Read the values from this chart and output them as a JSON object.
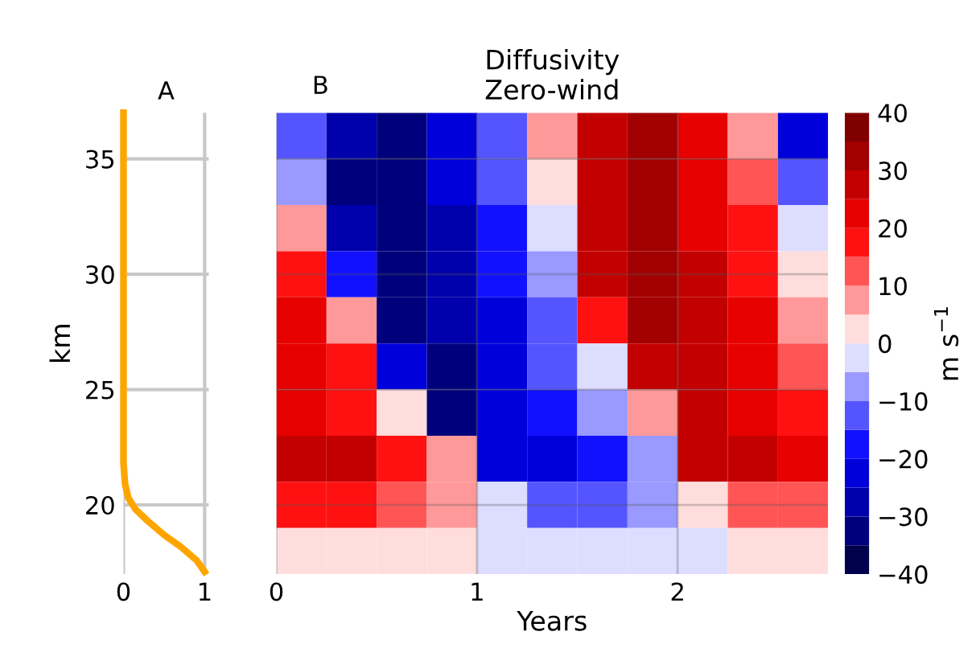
{
  "chart_data": [
    {
      "type": "line",
      "title": "A",
      "ylabel": "km",
      "x": [
        1,
        0.9,
        0.7,
        0.5,
        0.3,
        0.15,
        0.06,
        0.02,
        0,
        0
      ],
      "series": [
        {
          "color": "#ffa500",
          "values": [
            17.1,
            17.6,
            18.2,
            18.7,
            19.3,
            19.8,
            20.3,
            20.9,
            21.8,
            37
          ]
        }
      ],
      "xlim": [
        0,
        1.05
      ],
      "xticks": [
        0,
        1
      ],
      "ylim": [
        17,
        37
      ],
      "yticks": [
        20,
        25,
        30,
        35
      ],
      "grid": true
    },
    {
      "type": "heatmap",
      "title": "Diffusivity\nZero-wind",
      "annotations": [
        "B"
      ],
      "xlabel": "Years",
      "clabel": "m s$^{−1}$",
      "x": [
        0.125,
        0.375,
        0.625,
        0.875,
        1.125,
        1.375,
        1.625,
        1.875,
        2.125,
        2.375,
        2.625
      ],
      "y_categories": [
        null,
        null,
        null,
        null,
        null,
        null,
        null,
        null,
        null,
        null
      ],
      "cells": [
        [
          -15,
          -30,
          -32,
          -25,
          -12,
          5,
          28,
          30,
          22,
          8,
          -22
        ],
        [
          -10,
          -32,
          -33,
          -25,
          -15,
          3,
          28,
          30,
          23,
          12,
          -15
        ],
        [
          5,
          -30,
          -33,
          -27,
          -18,
          -4,
          27,
          30,
          24,
          15,
          -5
        ],
        [
          15,
          -20,
          -33,
          -28,
          -20,
          -7,
          25,
          30,
          25,
          17,
          2
        ],
        [
          20,
          5,
          -33,
          -30,
          -22,
          -12,
          15,
          30,
          26,
          20,
          8
        ],
        [
          22,
          15,
          -25,
          -32,
          -23,
          -15,
          -5,
          28,
          27,
          22,
          12
        ],
        [
          22,
          18,
          3,
          -32,
          -25,
          -18,
          -10,
          5,
          28,
          23,
          15
        ],
        [
          25,
          25,
          18,
          5,
          -25,
          -22,
          -18,
          -8,
          25,
          25,
          20
        ],
        [
          15,
          15,
          12,
          6,
          -3,
          -12,
          -12,
          -10,
          3,
          12,
          13
        ],
        [
          3,
          3,
          3,
          3,
          -2,
          -2,
          -2,
          -2,
          -2,
          3,
          3
        ]
      ],
      "xlim": [
        0,
        2.75
      ],
      "xticks": [
        0,
        1,
        2
      ],
      "clim": [
        -40,
        40
      ],
      "cticks": [
        -40,
        -30,
        -20,
        -10,
        0,
        10,
        20,
        30,
        40
      ],
      "grid": true,
      "tick_labels": "x"
    }
  ]
}
